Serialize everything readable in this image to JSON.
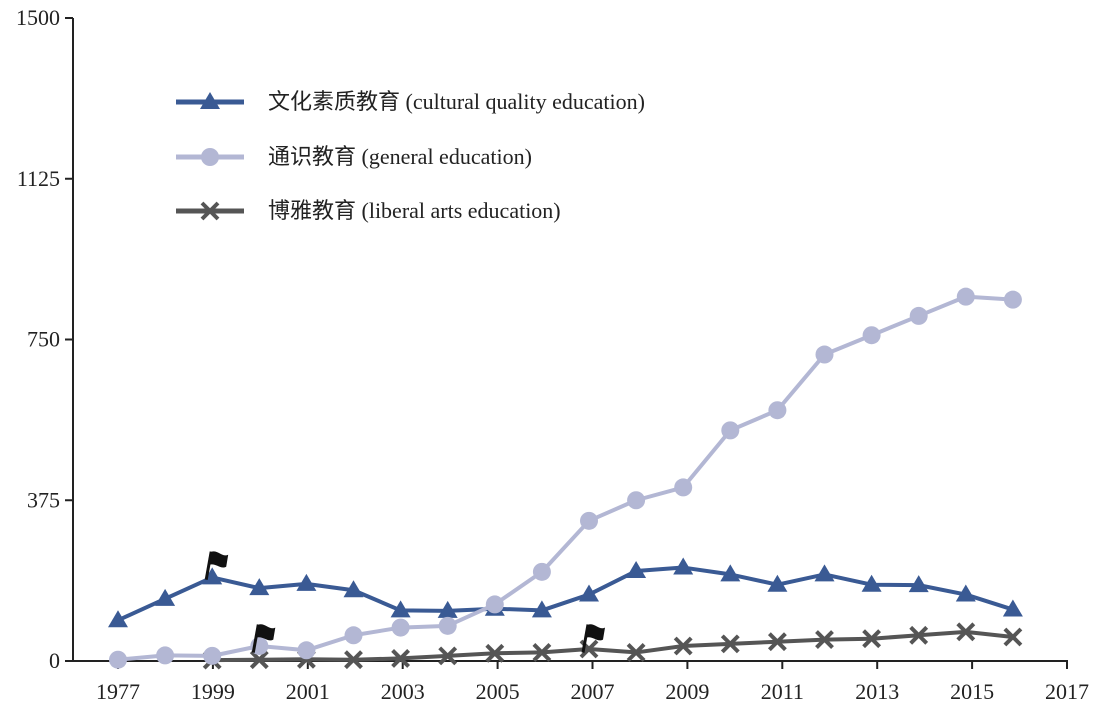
{
  "chart_data": {
    "type": "line",
    "title": "",
    "xlabel": "",
    "ylabel": "",
    "ylim": [
      0,
      1500
    ],
    "y_ticks": [
      0,
      375,
      750,
      1125,
      1500
    ],
    "x_ticks": [
      "1977",
      "1999",
      "2001",
      "2003",
      "2005",
      "2007",
      "2009",
      "2011",
      "2013",
      "2015",
      "2017"
    ],
    "x": [
      "1977",
      "1998",
      "1999",
      "2000",
      "2001",
      "2002",
      "2003",
      "2004",
      "2005",
      "2006",
      "2007",
      "2008",
      "2009",
      "2010",
      "2011",
      "2012",
      "2013",
      "2014",
      "2015",
      "2016"
    ],
    "grid": false,
    "legend_position": "top-left",
    "series": [
      {
        "name": "文化素质教育 (cultural quality education)",
        "marker": "triangle",
        "color": "#3a5a94",
        "values": [
          95,
          145,
          195,
          170,
          180,
          165,
          118,
          117,
          122,
          118,
          155,
          210,
          218,
          202,
          178,
          202,
          178,
          177,
          155,
          120
        ]
      },
      {
        "name": "通识教育  (general education)",
        "marker": "circle",
        "color": "#b3b7d4",
        "values": [
          3,
          13,
          12,
          35,
          25,
          60,
          78,
          82,
          132,
          208,
          327,
          375,
          405,
          538,
          585,
          715,
          760,
          805,
          850,
          843
        ]
      },
      {
        "name": "博雅教育 (liberal arts education)",
        "marker": "x",
        "color": "#555555",
        "values": [
          null,
          null,
          2,
          3,
          4,
          3,
          6,
          12,
          18,
          20,
          28,
          20,
          35,
          40,
          45,
          50,
          52,
          60,
          68,
          56
        ]
      }
    ],
    "annotations": [
      {
        "type": "flag",
        "x": "1999",
        "y": 255
      },
      {
        "type": "flag",
        "x": "2000",
        "y": 85
      },
      {
        "type": "flag",
        "x": "2007",
        "y": 85
      }
    ]
  }
}
